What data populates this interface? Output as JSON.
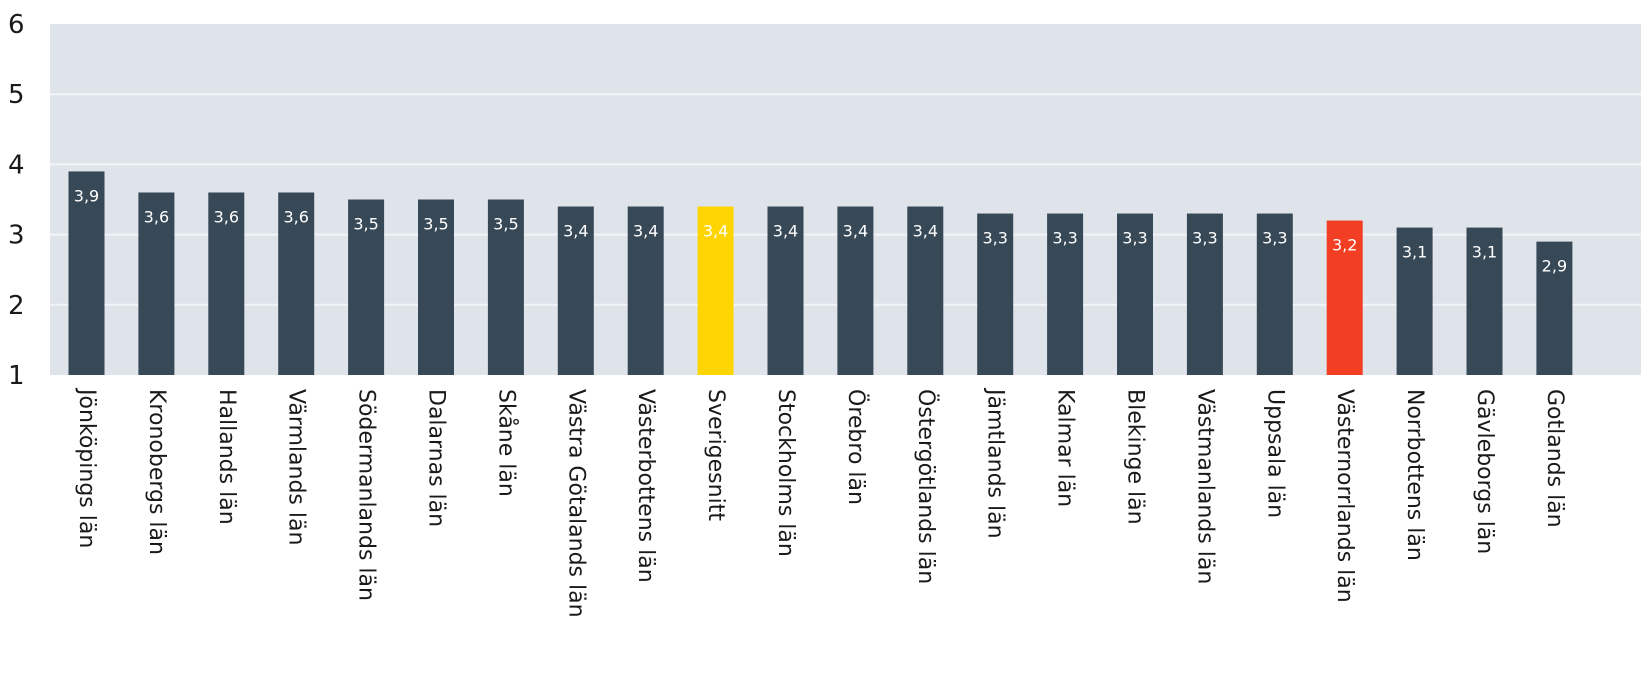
{
  "chart_data": {
    "type": "bar",
    "title": "",
    "xlabel": "",
    "ylabel": "",
    "ylim": [
      1,
      6
    ],
    "yticks": [
      "1",
      "2",
      "3",
      "4",
      "5",
      "6"
    ],
    "grid": true,
    "categories": [
      "Jönköpings län",
      "Kronobergs län",
      "Hallands län",
      "Värmlands län",
      "Södermanlands län",
      "Dalarnas län",
      "Skåne län",
      "Västra Götalands län",
      "Västerbottens län",
      "Sverigesnitt",
      "Stockholms län",
      "Örebro län",
      "Östergötlands län",
      "Jämtlands län",
      "Kalmar län",
      "Blekinge län",
      "Västmanlands län",
      "Uppsala län",
      "Västernorrlands län",
      "Norrbottens län",
      "Gävleborgs län",
      "Gotlands län"
    ],
    "values": [
      3.9,
      3.6,
      3.6,
      3.6,
      3.5,
      3.5,
      3.5,
      3.4,
      3.4,
      3.4,
      3.4,
      3.4,
      3.4,
      3.3,
      3.3,
      3.3,
      3.3,
      3.3,
      3.2,
      3.1,
      3.1,
      2.9
    ],
    "value_labels": [
      "3,9",
      "3,6",
      "3,6",
      "3,6",
      "3,5",
      "3,5",
      "3,5",
      "3,4",
      "3,4",
      "3,4",
      "3,4",
      "3,4",
      "3,4",
      "3,3",
      "3,3",
      "3,3",
      "3,3",
      "3,3",
      "3,2",
      "3,1",
      "3,1",
      "2,9"
    ],
    "colors": {
      "default": "#374856",
      "Sverigesnitt": "#fed500",
      "Västernorrlands län": "#f23e22",
      "plot_background": "#dfe4ea",
      "gridline": "#f2f4f7"
    }
  }
}
